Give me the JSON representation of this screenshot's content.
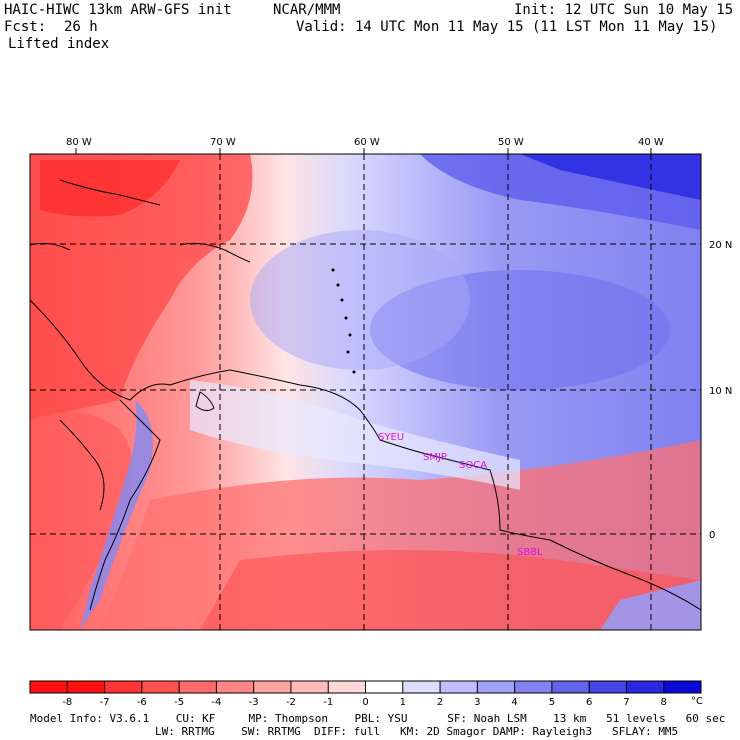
{
  "header": {
    "model_title": "HAIC-HIWC 13km ARW-GFS init",
    "org": "NCAR/MMM",
    "init": "Init: 12 UTC Sun 10 May 15",
    "fcst_label": "Fcst:",
    "fcst_value": "26 h",
    "valid": "Valid: 14 UTC Mon 11 May 15 (11 LST Mon 11 May 15)",
    "field": "Lifted index"
  },
  "map": {
    "lon_labels": [
      "80 W",
      "70 W",
      "60 W",
      "50 W",
      "40 W"
    ],
    "lat_labels": [
      "20 N",
      "10 N",
      "0"
    ],
    "stations": [
      "SYEU",
      "SMJP",
      "SOCA",
      "SBBL"
    ]
  },
  "colorbar": {
    "ticks": [
      "-8",
      "-7",
      "-6",
      "-5",
      "-4",
      "-3",
      "-2",
      "-1",
      "0",
      "1",
      "2",
      "3",
      "4",
      "5",
      "6",
      "7",
      "8"
    ],
    "unit": "°C",
    "colors": [
      "#ff1010",
      "#ff3434",
      "#ff5050",
      "#ff6a6a",
      "#ff8686",
      "#ffa2a2",
      "#ffbcbc",
      "#ffd8d8",
      "#ffffff",
      "#dcdcff",
      "#bebefc",
      "#a2a2f6",
      "#8282f0",
      "#6464ea",
      "#4646e4",
      "#2828e0",
      "#0a0ad8"
    ]
  },
  "footer": {
    "line1": "Model Info: V3.6.1    CU: KF     MP: Thompson    PBL: YSU      SF: Noah LSM    13 km   51 levels   60 sec",
    "line2": "LW: RRTMG    SW: RRTMG  DIFF: full   KM: 2D Smagor DAMP: Rayleigh3   SFLAY: MM5"
  }
}
